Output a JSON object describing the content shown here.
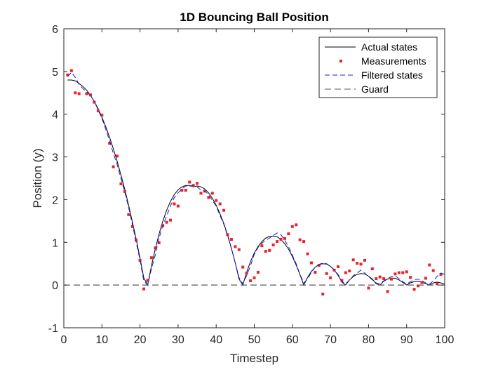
{
  "chart_data": {
    "type": "line",
    "title": "1D Bouncing Ball Position",
    "xlabel": "Timestep",
    "ylabel": "Position (y)",
    "xlim": [
      0,
      100
    ],
    "ylim": [
      -1,
      6
    ],
    "xticks": [
      0,
      10,
      20,
      30,
      40,
      50,
      60,
      70,
      80,
      90,
      100
    ],
    "yticks": [
      -1,
      0,
      1,
      2,
      3,
      4,
      5,
      6
    ],
    "grid": false,
    "legend_position": "top-right",
    "series": [
      {
        "name": "Actual states",
        "style": "solid",
        "color": "#000000",
        "x": [
          1,
          2,
          3,
          4,
          5,
          6,
          7,
          8,
          9,
          10,
          11,
          12,
          13,
          14,
          15,
          16,
          17,
          18,
          19,
          20,
          21,
          22,
          23,
          24,
          25,
          26,
          27,
          28,
          29,
          30,
          31,
          32,
          33,
          34,
          35,
          36,
          37,
          38,
          39,
          40,
          41,
          42,
          43,
          44,
          45,
          46,
          47,
          48,
          49,
          50,
          51,
          52,
          53,
          54,
          55,
          56,
          57,
          58,
          59,
          60,
          61,
          62,
          63,
          64,
          65,
          66,
          67,
          68,
          69,
          70,
          71,
          72,
          73,
          74,
          75,
          76,
          77,
          78,
          79,
          80,
          81,
          82,
          83,
          84,
          85,
          86,
          87,
          88,
          89,
          90,
          91,
          92,
          93,
          94,
          95,
          96,
          97,
          98,
          99,
          100
        ],
        "y": [
          4.8,
          4.8,
          4.78,
          4.72,
          4.65,
          4.56,
          4.44,
          4.3,
          4.13,
          3.93,
          3.71,
          3.46,
          3.19,
          2.9,
          2.58,
          2.24,
          1.87,
          1.48,
          1.07,
          0.63,
          0.17,
          0.0,
          0.45,
          0.84,
          1.2,
          1.5,
          1.75,
          1.96,
          2.12,
          2.23,
          2.3,
          2.33,
          2.33,
          2.3,
          2.32,
          2.3,
          2.25,
          2.16,
          2.03,
          1.87,
          1.67,
          1.44,
          1.17,
          0.86,
          0.52,
          0.14,
          0.0,
          0.3,
          0.55,
          0.75,
          0.9,
          1.02,
          1.1,
          1.14,
          1.15,
          1.13,
          1.07,
          0.97,
          0.84,
          0.67,
          0.47,
          0.24,
          0.0,
          0.18,
          0.32,
          0.42,
          0.48,
          0.5,
          0.49,
          0.44,
          0.35,
          0.23,
          0.07,
          0.0,
          0.12,
          0.2,
          0.25,
          0.27,
          0.26,
          0.21,
          0.14,
          0.03,
          0.0,
          0.09,
          0.14,
          0.16,
          0.16,
          0.12,
          0.06,
          0.0,
          0.05,
          0.08,
          0.09,
          0.07,
          0.03,
          0.0,
          0.05,
          0.07,
          0.05,
          0.02
        ],
        "y_values_note": "Actual states"
      },
      {
        "name": "Measurements",
        "style": "markers",
        "color": "#e8242a",
        "x": [
          1,
          2,
          3,
          4,
          6,
          7,
          8,
          9,
          10,
          12,
          13,
          14,
          15,
          16,
          17,
          18,
          19,
          20,
          21,
          22,
          23,
          24,
          25,
          26,
          27,
          28,
          29,
          30,
          31,
          32,
          33,
          34,
          35,
          36,
          37,
          38,
          39,
          40,
          41,
          42,
          43,
          44,
          45,
          46,
          47,
          48,
          49,
          50,
          51,
          52,
          53,
          54,
          55,
          56,
          57,
          58,
          59,
          60,
          61,
          62,
          63,
          64,
          65,
          66,
          67,
          68,
          69,
          70,
          71,
          72,
          73,
          74,
          75,
          76,
          77,
          78,
          79,
          80,
          81,
          82,
          83,
          84,
          85,
          86,
          87,
          88,
          89,
          90,
          91,
          92,
          93,
          94,
          95,
          96,
          97,
          98,
          99
        ],
        "y": [
          4.92,
          5.02,
          4.5,
          4.48,
          4.48,
          4.45,
          4.28,
          4.08,
          3.98,
          3.32,
          2.77,
          3.02,
          2.37,
          2.19,
          1.65,
          1.37,
          1.05,
          0.58,
          -0.09,
          0.11,
          0.64,
          0.87,
          0.99,
          1.39,
          1.47,
          1.52,
          1.9,
          1.85,
          2.22,
          2.22,
          2.41,
          2.33,
          2.38,
          2.15,
          2.2,
          2.05,
          2.15,
          1.98,
          1.9,
          1.75,
          1.18,
          1.07,
          0.9,
          0.83,
          0.42,
          0.28,
          0.1,
          0.17,
          0.3,
          0.92,
          0.79,
          0.81,
          0.94,
          1.02,
          1.07,
          1.09,
          1.2,
          1.37,
          1.41,
          1.06,
          1.02,
          0.73,
          0.52,
          0.3,
          0.46,
          -0.21,
          0.27,
          0.17,
          0.35,
          0.43,
          0.11,
          0.29,
          0.33,
          0.59,
          0.51,
          0.49,
          0.58,
          -0.07,
          0.38,
          0.15,
          0.19,
          0.15,
          -0.15,
          0.14,
          0.26,
          0.29,
          0.29,
          0.31,
          0.18,
          -0.1,
          -0.02,
          0.06,
          0.16,
          0.47,
          0.34,
          0.03,
          0.25
        ]
      },
      {
        "name": "Filtered states",
        "style": "dashed",
        "color": "#1b1bd6",
        "x": [
          1,
          2,
          3,
          4,
          5,
          6,
          7,
          8,
          9,
          10,
          11,
          12,
          13,
          14,
          15,
          16,
          17,
          18,
          19,
          20,
          21,
          22,
          23,
          24,
          25,
          26,
          27,
          28,
          29,
          30,
          31,
          32,
          33,
          34,
          35,
          36,
          37,
          38,
          39,
          40,
          41,
          42,
          43,
          44,
          45,
          46,
          47,
          48,
          49,
          50,
          51,
          52,
          53,
          54,
          55,
          56,
          57,
          58,
          59,
          60,
          61,
          62,
          63,
          64,
          65,
          66,
          67,
          68,
          69,
          70,
          71,
          72,
          73,
          74,
          75,
          76,
          77,
          78,
          79,
          80,
          81,
          82,
          83,
          84,
          85,
          86,
          87,
          88,
          89,
          90,
          91,
          92,
          93,
          94,
          95,
          96,
          97,
          98,
          99,
          100
        ],
        "y": [
          4.88,
          4.98,
          4.86,
          4.7,
          4.6,
          4.52,
          4.44,
          4.3,
          4.1,
          3.9,
          3.65,
          3.38,
          3.08,
          2.82,
          2.5,
          2.18,
          1.82,
          1.42,
          1.0,
          0.58,
          0.1,
          0.0,
          0.38,
          0.7,
          1.1,
          1.4,
          1.62,
          1.85,
          2.05,
          2.16,
          2.25,
          2.32,
          2.31,
          2.34,
          2.3,
          2.22,
          2.2,
          2.12,
          1.98,
          1.85,
          1.63,
          1.42,
          1.15,
          0.85,
          0.52,
          0.18,
          0.03,
          0.22,
          0.45,
          0.72,
          0.88,
          0.98,
          1.05,
          1.1,
          1.16,
          1.22,
          1.18,
          1.05,
          0.9,
          0.7,
          0.5,
          0.25,
          0.05,
          0.14,
          0.3,
          0.42,
          0.48,
          0.52,
          0.5,
          0.44,
          0.36,
          0.25,
          0.08,
          0.03,
          0.12,
          0.22,
          0.28,
          0.35,
          0.28,
          0.2,
          0.12,
          0.05,
          0.03,
          0.1,
          0.15,
          0.2,
          0.22,
          0.15,
          0.08,
          0.02,
          0.08,
          0.12,
          0.14,
          0.1,
          0.05,
          0.02,
          0.1,
          0.2,
          0.28,
          0.25
        ]
      },
      {
        "name": "Guard",
        "style": "dashed",
        "color": "#595959",
        "x": [
          0,
          100
        ],
        "y": [
          0,
          0
        ]
      }
    ]
  }
}
